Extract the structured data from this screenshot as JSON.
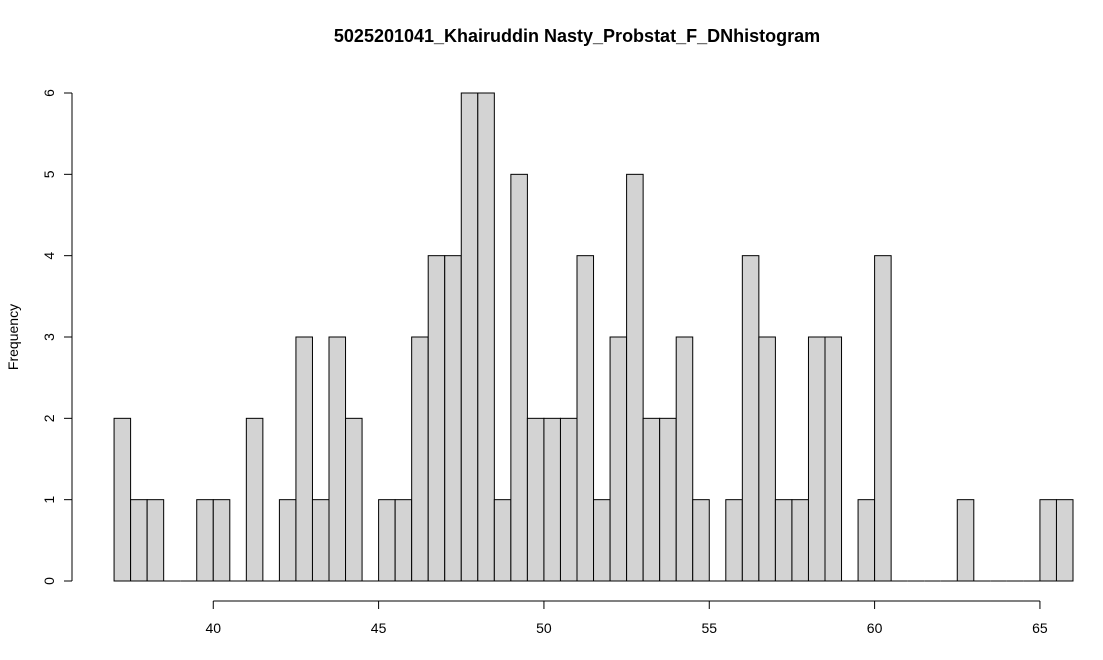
{
  "chart_data": {
    "type": "histogram",
    "title": "5025201041_Khairuddin Nasty_Probstat_F_DNhistogram",
    "xlabel": "",
    "ylabel": "Frequency",
    "bin_start": 37,
    "bin_width": 0.5,
    "counts": [
      2,
      1,
      1,
      0,
      0,
      1,
      1,
      0,
      2,
      0,
      1,
      3,
      1,
      3,
      2,
      0,
      1,
      1,
      3,
      4,
      4,
      6,
      6,
      1,
      5,
      2,
      2,
      2,
      4,
      1,
      3,
      5,
      2,
      2,
      3,
      1,
      0,
      1,
      4,
      3,
      1,
      1,
      3,
      3,
      0,
      1,
      4,
      0,
      0,
      0,
      0,
      1,
      0,
      0,
      0,
      0,
      1,
      1
    ],
    "x_ticks": [
      40,
      45,
      50,
      55,
      60,
      65
    ],
    "y_ticks": [
      0,
      1,
      2,
      3,
      4,
      5,
      6
    ],
    "xlim": [
      36,
      66
    ],
    "ylim": [
      0,
      6
    ],
    "bar_fill": "#d3d3d3",
    "bar_stroke": "#000000",
    "grid": false,
    "legend": "none"
  }
}
